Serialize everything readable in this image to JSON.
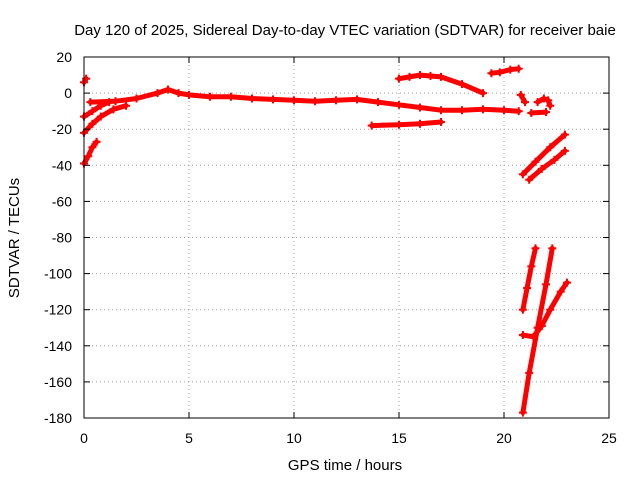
{
  "chart_data": {
    "type": "scatter",
    "title": "Day 120 of 2025, Sidereal Day-to-day VTEC variation (SDTVAR) for receiver baie",
    "xlabel": "GPS time / hours",
    "ylabel": "SDTVAR / TECUs",
    "xlim": [
      0,
      25
    ],
    "ylim": [
      -180,
      20
    ],
    "xticks": [
      0,
      5,
      10,
      15,
      20,
      25
    ],
    "yticks": [
      20,
      0,
      -20,
      -40,
      -60,
      -80,
      -100,
      -120,
      -140,
      -160,
      -180
    ],
    "grid": true,
    "legend": "none",
    "series_color": "#ff0000",
    "segments": [
      {
        "points": [
          [
            0.0,
            6.0
          ],
          [
            0.1,
            8.0
          ]
        ]
      },
      {
        "points": [
          [
            0.0,
            -13.0
          ],
          [
            0.4,
            -10.0
          ],
          [
            0.8,
            -7.0
          ],
          [
            1.2,
            -5.0
          ]
        ]
      },
      {
        "points": [
          [
            0.0,
            -22.0
          ],
          [
            0.4,
            -17.0
          ],
          [
            0.8,
            -13.0
          ],
          [
            1.4,
            -9.0
          ],
          [
            2.0,
            -7.0
          ]
        ]
      },
      {
        "points": [
          [
            0.0,
            -39.0
          ],
          [
            0.2,
            -35.0
          ],
          [
            0.4,
            -30.0
          ],
          [
            0.6,
            -27.0
          ]
        ]
      },
      {
        "points": [
          [
            0.3,
            -5.0
          ],
          [
            1.5,
            -4.5
          ],
          [
            2.5,
            -3.0
          ],
          [
            3.5,
            0.0
          ],
          [
            4.0,
            2.0
          ],
          [
            4.5,
            0.0
          ],
          [
            5.0,
            -1.0
          ],
          [
            6.0,
            -2.0
          ],
          [
            7.0,
            -2.0
          ],
          [
            8.0,
            -3.0
          ],
          [
            9.0,
            -3.5
          ],
          [
            10.0,
            -4.0
          ],
          [
            11.0,
            -4.5
          ],
          [
            12.0,
            -4.0
          ],
          [
            13.0,
            -3.5
          ],
          [
            14.0,
            -5.0
          ],
          [
            15.0,
            -6.5
          ],
          [
            16.0,
            -8.0
          ],
          [
            17.0,
            -9.5
          ],
          [
            18.0,
            -9.5
          ],
          [
            19.0,
            -9.0
          ],
          [
            20.0,
            -9.5
          ],
          [
            20.7,
            -10.0
          ]
        ]
      },
      {
        "points": [
          [
            13.7,
            -18.0
          ],
          [
            15.0,
            -17.5
          ],
          [
            16.0,
            -17.0
          ],
          [
            17.0,
            -16.0
          ]
        ]
      },
      {
        "points": [
          [
            15.0,
            8.0
          ],
          [
            15.5,
            9.0
          ],
          [
            16.0,
            10.0
          ],
          [
            16.5,
            9.5
          ],
          [
            17.0,
            9.0
          ],
          [
            18.0,
            5.0
          ],
          [
            19.0,
            0.0
          ]
        ]
      },
      {
        "points": [
          [
            19.4,
            11.0
          ],
          [
            19.8,
            11.5
          ],
          [
            20.3,
            13.0
          ],
          [
            20.7,
            13.5
          ]
        ]
      },
      {
        "points": [
          [
            20.8,
            -1.0
          ],
          [
            21.0,
            -5.0
          ]
        ]
      },
      {
        "points": [
          [
            21.6,
            -5.0
          ],
          [
            21.9,
            -3.0
          ],
          [
            22.1,
            -4.0
          ],
          [
            22.2,
            -7.0
          ]
        ]
      },
      {
        "points": [
          [
            21.3,
            -11.0
          ],
          [
            22.0,
            -10.5
          ]
        ]
      },
      {
        "points": [
          [
            20.9,
            -45.0
          ],
          [
            21.5,
            -38.0
          ],
          [
            22.2,
            -30.0
          ],
          [
            22.9,
            -23.0
          ]
        ]
      },
      {
        "points": [
          [
            21.2,
            -48.0
          ],
          [
            21.8,
            -42.0
          ],
          [
            22.4,
            -37.0
          ],
          [
            22.9,
            -32.0
          ]
        ]
      },
      {
        "points": [
          [
            20.9,
            -120.0
          ],
          [
            21.1,
            -108.0
          ],
          [
            21.3,
            -96.0
          ],
          [
            21.5,
            -86.0
          ]
        ]
      },
      {
        "points": [
          [
            20.9,
            -177.0
          ],
          [
            21.2,
            -155.0
          ],
          [
            21.6,
            -130.0
          ],
          [
            22.0,
            -106.0
          ],
          [
            22.3,
            -86.0
          ]
        ]
      },
      {
        "points": [
          [
            20.9,
            -134.0
          ],
          [
            21.4,
            -135.0
          ],
          [
            21.8,
            -129.0
          ],
          [
            22.2,
            -120.0
          ],
          [
            22.7,
            -110.0
          ],
          [
            23.0,
            -105.0
          ]
        ]
      }
    ]
  }
}
